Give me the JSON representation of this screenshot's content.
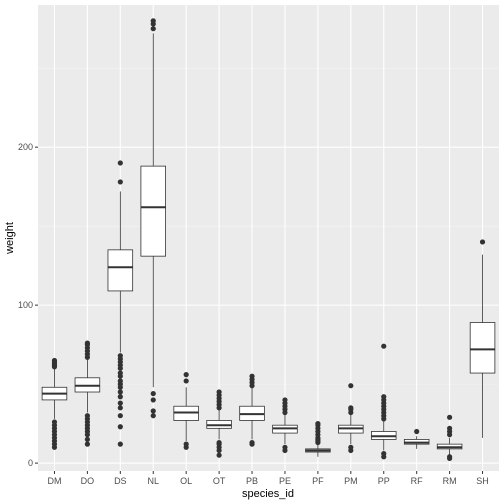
{
  "chart_data": {
    "type": "boxplot",
    "xlabel": "species_id",
    "ylabel": "weight",
    "ylim": [
      -5,
      290
    ],
    "y_ticks": [
      0,
      100,
      200
    ],
    "grid": true,
    "categories": [
      "DM",
      "DO",
      "DS",
      "NL",
      "OL",
      "OT",
      "PB",
      "PE",
      "PF",
      "PM",
      "PP",
      "RF",
      "RM",
      "SH"
    ],
    "boxes": [
      {
        "category": "DM",
        "q1": 40,
        "median": 44,
        "q3": 48,
        "whisker_low": 28,
        "whisker_high": 60,
        "outliers": [
          10,
          12,
          14,
          16,
          18,
          20,
          22,
          24,
          26,
          61,
          62,
          63,
          64,
          65
        ]
      },
      {
        "category": "DO",
        "q1": 45,
        "median": 49,
        "q3": 54,
        "whisker_low": 32,
        "whisker_high": 66,
        "outliers": [
          12,
          15,
          18,
          20,
          22,
          24,
          26,
          28,
          30,
          67,
          69,
          71,
          73,
          75,
          76
        ]
      },
      {
        "category": "DS",
        "q1": 109,
        "median": 124,
        "q3": 135,
        "whisker_low": 70,
        "whisker_high": 172,
        "outliers": [
          12,
          23,
          30,
          35,
          38,
          42,
          45,
          48,
          50,
          52,
          55,
          57,
          60,
          62,
          64,
          66,
          68,
          178,
          190
        ]
      },
      {
        "category": "NL",
        "q1": 131,
        "median": 162,
        "q3": 188,
        "whisker_low": 48,
        "whisker_high": 272,
        "outliers": [
          30,
          33,
          40,
          44,
          275,
          278,
          280
        ]
      },
      {
        "category": "OL",
        "q1": 27,
        "median": 32,
        "q3": 36,
        "whisker_low": 14,
        "whisker_high": 48,
        "outliers": [
          10,
          12,
          52,
          56
        ]
      },
      {
        "category": "OT",
        "q1": 22,
        "median": 24,
        "q3": 27,
        "whisker_low": 15,
        "whisker_high": 34,
        "outliers": [
          5,
          8,
          10,
          12,
          13,
          35,
          37,
          39,
          41,
          43,
          45
        ]
      },
      {
        "category": "PB",
        "q1": 27,
        "median": 31,
        "q3": 36,
        "whisker_low": 15,
        "whisker_high": 48,
        "outliers": [
          12,
          13,
          49,
          51,
          53,
          55
        ]
      },
      {
        "category": "PE",
        "q1": 19,
        "median": 22,
        "q3": 24,
        "whisker_low": 12,
        "whisker_high": 31,
        "outliers": [
          8,
          10,
          32,
          34,
          36,
          38,
          40
        ]
      },
      {
        "category": "PF",
        "q1": 7,
        "median": 8,
        "q3": 9,
        "whisker_low": 4,
        "whisker_high": 12,
        "outliers": [
          13,
          14,
          15,
          16,
          18,
          20,
          22,
          24,
          25
        ]
      },
      {
        "category": "PM",
        "q1": 19,
        "median": 22,
        "q3": 24,
        "whisker_low": 12,
        "whisker_high": 31,
        "outliers": [
          8,
          10,
          32,
          34,
          35,
          49
        ]
      },
      {
        "category": "PP",
        "q1": 15,
        "median": 17,
        "q3": 20,
        "whisker_low": 8,
        "whisker_high": 27,
        "outliers": [
          4,
          6,
          28,
          30,
          32,
          34,
          36,
          38,
          40,
          42,
          74
        ]
      },
      {
        "category": "RF",
        "q1": 12,
        "median": 13,
        "q3": 15,
        "whisker_low": 9,
        "whisker_high": 17,
        "outliers": [
          20
        ]
      },
      {
        "category": "RM",
        "q1": 9,
        "median": 10,
        "q3": 12,
        "whisker_low": 5,
        "whisker_high": 16,
        "outliers": [
          3,
          4,
          18,
          20,
          22,
          29
        ]
      },
      {
        "category": "SH",
        "q1": 57,
        "median": 72,
        "q3": 89,
        "whisker_low": 16,
        "whisker_high": 132,
        "outliers": [
          140
        ]
      }
    ]
  },
  "colors": {
    "panel_bg": "#ebebeb",
    "grid_major": "#ffffff",
    "grid_minor": "#f5f5f5",
    "box_fill": "#ffffff",
    "box_stroke": "#333333",
    "outlier": "#333333",
    "tick_text": "#4d4d4d",
    "axis_title": "#000000"
  }
}
